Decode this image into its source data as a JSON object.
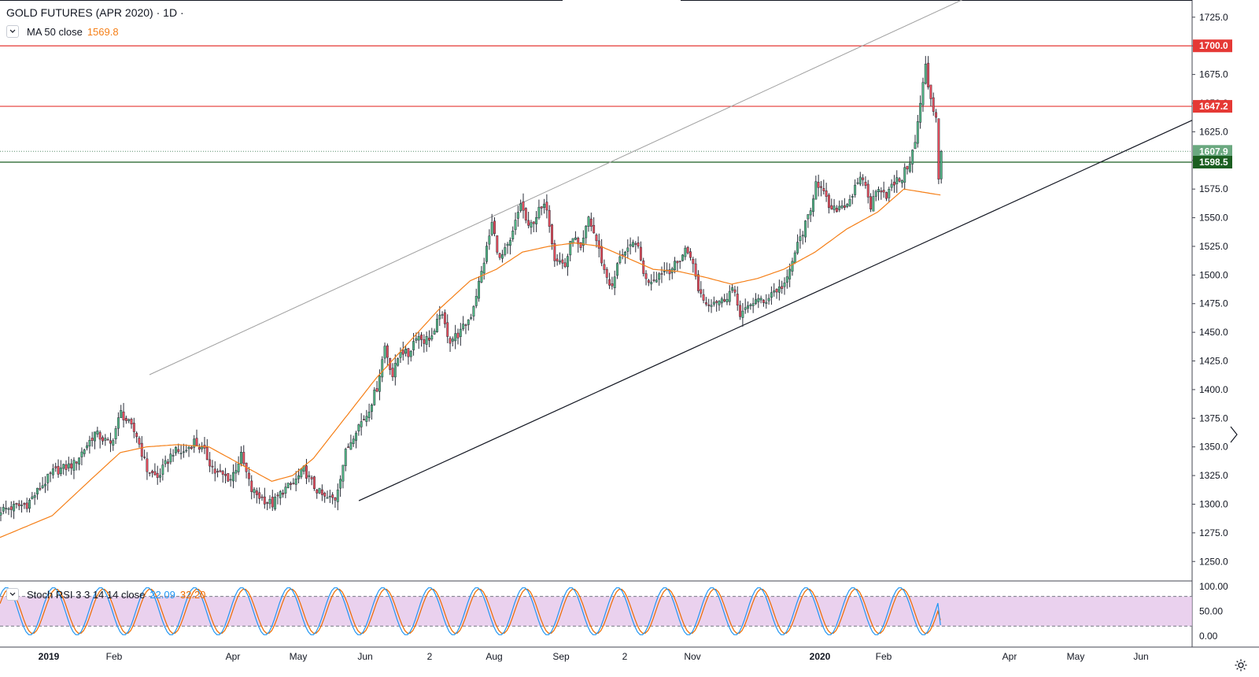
{
  "header": {
    "title": "GOLD FUTURES (APR 2020) · 1D ·",
    "ma_label": "MA 50 close",
    "ma_value": "1569.8"
  },
  "stoch_legend": {
    "label": "Stoch RSI 3 3 14 14 close",
    "k_value": "22.09",
    "d_value": "32.20"
  },
  "colors": {
    "up": "#53b987",
    "down": "#eb4d5c",
    "candle_border": "#2a2e39",
    "ma": "#f57f17",
    "resistance": "#e53935",
    "support_green": "#1b5e20",
    "last_price": "#6aa87f",
    "stoch_k": "#2196f3",
    "stoch_d": "#ef6c00",
    "stoch_band": "#e1bee7"
  },
  "chart_data": {
    "type": "candlestick",
    "price_axis": {
      "ticks": [
        "1725.0",
        "1700.0",
        "1675.0",
        "1650.0",
        "1625.0",
        "1600.0",
        "1575.0",
        "1550.0",
        "1525.0",
        "1500.0",
        "1475.0",
        "1450.0",
        "1425.0",
        "1400.0",
        "1375.0",
        "1350.0",
        "1325.0",
        "1300.0",
        "1275.0",
        "1250.0"
      ],
      "range": [
        1233,
        1740
      ]
    },
    "price_labels": [
      {
        "text": "1700.0",
        "value": 1700.0,
        "kind": "resistance"
      },
      {
        "text": "1647.2",
        "value": 1647.2,
        "kind": "resistance"
      },
      {
        "text": "1607.9",
        "value": 1607.9,
        "kind": "last"
      },
      {
        "text": "1598.5",
        "value": 1598.5,
        "kind": "support"
      }
    ],
    "horizontal_lines": [
      {
        "value": 1700.0,
        "style": "resistance"
      },
      {
        "value": 1647.2,
        "style": "resistance"
      },
      {
        "value": 1598.5,
        "style": "support"
      },
      {
        "value": 1607.9,
        "style": "last-dotted"
      }
    ],
    "time_axis": [
      "2019",
      "Feb",
      "Apr",
      "May",
      "Jun",
      "2",
      "Aug",
      "Sep",
      "2",
      "Nov",
      "2020",
      "Feb",
      "Apr",
      "May",
      "Jun"
    ],
    "trendlines": [
      {
        "name": "rising-support",
        "from": [
          "2019-05-30",
          1303
        ],
        "to": [
          "2020-04-30",
          1635
        ]
      },
      {
        "name": "upper-channel",
        "from": [
          "2019-02-15",
          1413
        ],
        "to": [
          "2020-02-25",
          1745
        ]
      }
    ],
    "ohlc_keyframes": [
      [
        0,
        1295
      ],
      [
        10,
        1300
      ],
      [
        20,
        1328
      ],
      [
        28,
        1335
      ],
      [
        36,
        1362
      ],
      [
        42,
        1352
      ],
      [
        46,
        1380
      ],
      [
        52,
        1360
      ],
      [
        56,
        1330
      ],
      [
        60,
        1323
      ],
      [
        66,
        1346
      ],
      [
        70,
        1345
      ],
      [
        74,
        1355
      ],
      [
        78,
        1345
      ],
      [
        82,
        1328
      ],
      [
        88,
        1322
      ],
      [
        92,
        1342
      ],
      [
        96,
        1312
      ],
      [
        100,
        1305
      ],
      [
        104,
        1300
      ],
      [
        108,
        1312
      ],
      [
        112,
        1318
      ],
      [
        116,
        1330
      ],
      [
        120,
        1315
      ],
      [
        124,
        1305
      ],
      [
        128,
        1305
      ],
      [
        132,
        1345
      ],
      [
        136,
        1366
      ],
      [
        140,
        1378
      ],
      [
        144,
        1402
      ],
      [
        147,
        1438
      ],
      [
        150,
        1412
      ],
      [
        153,
        1435
      ],
      [
        156,
        1430
      ],
      [
        159,
        1448
      ],
      [
        162,
        1443
      ],
      [
        166,
        1448
      ],
      [
        168,
        1468
      ],
      [
        172,
        1443
      ],
      [
        176,
        1450
      ],
      [
        180,
        1465
      ],
      [
        184,
        1502
      ],
      [
        186,
        1523
      ],
      [
        188,
        1545
      ],
      [
        191,
        1513
      ],
      [
        195,
        1528
      ],
      [
        199,
        1563
      ],
      [
        202,
        1540
      ],
      [
        206,
        1556
      ],
      [
        209,
        1560
      ],
      [
        212,
        1516
      ],
      [
        216,
        1508
      ],
      [
        219,
        1535
      ],
      [
        222,
        1520
      ],
      [
        225,
        1550
      ],
      [
        228,
        1530
      ],
      [
        231,
        1504
      ],
      [
        234,
        1488
      ],
      [
        237,
        1518
      ],
      [
        240,
        1520
      ],
      [
        243,
        1530
      ],
      [
        247,
        1495
      ],
      [
        250,
        1497
      ],
      [
        253,
        1503
      ],
      [
        256,
        1505
      ],
      [
        259,
        1510
      ],
      [
        262,
        1522
      ],
      [
        264,
        1518
      ],
      [
        267,
        1488
      ],
      [
        270,
        1475
      ],
      [
        273,
        1478
      ],
      [
        276,
        1477
      ],
      [
        280,
        1488
      ],
      [
        283,
        1467
      ],
      [
        286,
        1470
      ],
      [
        289,
        1480
      ],
      [
        292,
        1475
      ],
      [
        295,
        1485
      ],
      [
        298,
        1488
      ],
      [
        301,
        1495
      ],
      [
        304,
        1520
      ],
      [
        307,
        1538
      ],
      [
        310,
        1555
      ],
      [
        312,
        1584
      ],
      [
        315,
        1570
      ],
      [
        318,
        1555
      ],
      [
        321,
        1560
      ],
      [
        324,
        1563
      ],
      [
        327,
        1575
      ],
      [
        330,
        1585
      ],
      [
        333,
        1560
      ],
      [
        336,
        1578
      ],
      [
        339,
        1570
      ],
      [
        342,
        1580
      ],
      [
        345,
        1585
      ],
      [
        348,
        1600
      ],
      [
        350,
        1615
      ],
      [
        352,
        1650
      ],
      [
        354,
        1682
      ],
      [
        355,
        1665
      ],
      [
        357,
        1645
      ],
      [
        358,
        1638
      ],
      [
        359,
        1585
      ],
      [
        360,
        1607.9
      ]
    ],
    "ma50_keyframes": [
      [
        0,
        1271
      ],
      [
        20,
        1290
      ],
      [
        35,
        1322
      ],
      [
        46,
        1345
      ],
      [
        56,
        1350
      ],
      [
        68,
        1352
      ],
      [
        80,
        1350
      ],
      [
        92,
        1335
      ],
      [
        104,
        1320
      ],
      [
        112,
        1325
      ],
      [
        120,
        1340
      ],
      [
        132,
        1375
      ],
      [
        144,
        1410
      ],
      [
        156,
        1440
      ],
      [
        168,
        1470
      ],
      [
        180,
        1495
      ],
      [
        190,
        1505
      ],
      [
        200,
        1520
      ],
      [
        210,
        1525
      ],
      [
        220,
        1528
      ],
      [
        230,
        1525
      ],
      [
        240,
        1515
      ],
      [
        250,
        1505
      ],
      [
        260,
        1503
      ],
      [
        270,
        1498
      ],
      [
        280,
        1492
      ],
      [
        290,
        1497
      ],
      [
        300,
        1505
      ],
      [
        312,
        1520
      ],
      [
        324,
        1540
      ],
      [
        336,
        1555
      ],
      [
        346,
        1575
      ],
      [
        360,
        1569.8
      ]
    ],
    "stoch_axis": {
      "ticks": [
        "100.00",
        "50.00",
        "0.00"
      ],
      "upper_band": 80,
      "lower_band": 20
    },
    "stoch_rsi": {
      "k_last": 22.09,
      "d_last": 32.2,
      "period": 18,
      "phase": 2
    }
  }
}
